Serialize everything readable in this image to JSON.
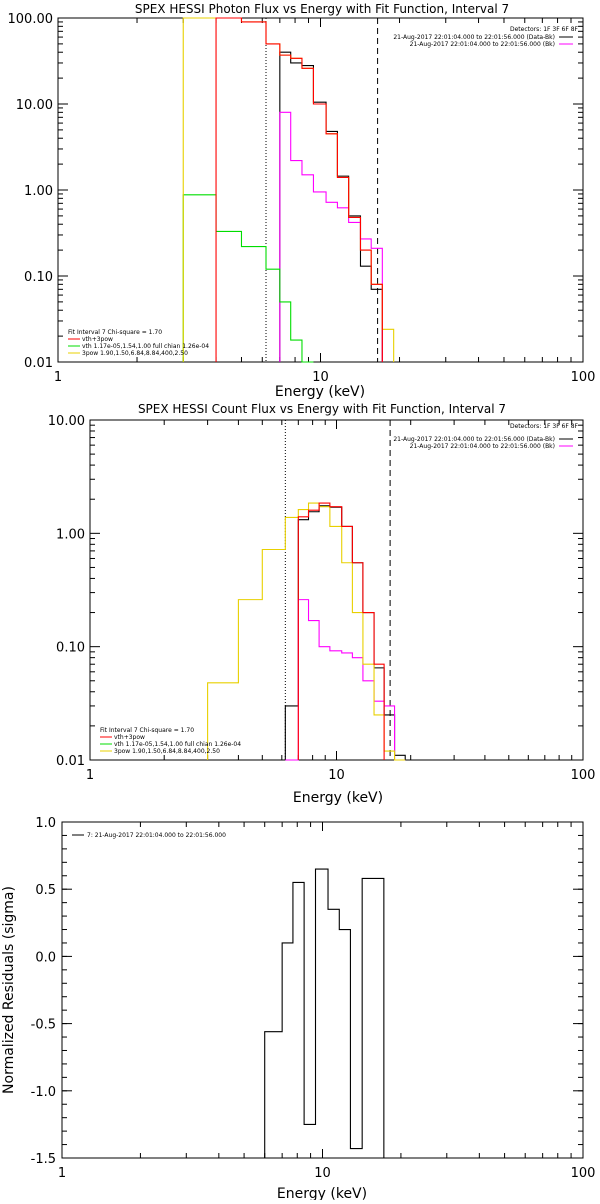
{
  "chart_data": [
    {
      "type": "line",
      "title": "SPEX HESSI Photon Flux vs Energy with Fit Function, Interval 7",
      "xlabel": "Energy (keV)",
      "ylabel": "",
      "xscale": "log",
      "yscale": "log",
      "xlim": [
        1,
        100
      ],
      "ylim": [
        0.01,
        100
      ],
      "xticks": [
        "1",
        "10",
        "100"
      ],
      "yticks": [
        "0.01",
        "0.10",
        "1.00",
        "10.00",
        "100.00"
      ],
      "detectors": "Detectors: 1F 3F 6F 8F",
      "legend_right": [
        {
          "text": "21-Aug-2017 22:01:04.000 to 22:01:56.000 (Data-Bk)",
          "color": "#000000"
        },
        {
          "text": "21-Aug-2017 22:01:04.000 to 22:01:56.000 (Bk)",
          "color": "#ff00ff"
        }
      ],
      "legend_left": [
        {
          "text": "Fit Interval 7   Chi-square = 1.70",
          "color": null
        },
        {
          "text": "vth+3pow",
          "color": "#ff0000"
        },
        {
          "text": "vth 1.17e-05,1.54,1.00  full chian 1.26e-04",
          "color": "#00dd00"
        },
        {
          "text": "3pow 1.90,1.50,6.84,8.84,400,2.50",
          "color": "#e8d000"
        }
      ],
      "vlines": [
        {
          "x": 6.2,
          "style": "dotted"
        },
        {
          "x": 16.5,
          "style": "dashed"
        }
      ],
      "bin_edges": [
        3.0,
        4.0,
        5.0,
        6.2,
        7.0,
        7.7,
        8.5,
        9.4,
        10.5,
        11.6,
        12.8,
        14.2,
        15.6,
        17.2,
        19.0
      ],
      "series": [
        {
          "name": "Data-Bk",
          "color": "#000000",
          "start": 4,
          "values": [
            40,
            30,
            28,
            10.5,
            4.8,
            1.45,
            0.5,
            0.13,
            0.07
          ]
        },
        {
          "name": "Bk",
          "color": "#ff00ff",
          "start": 4,
          "values": [
            8,
            2.2,
            1.5,
            0.95,
            0.72,
            0.62,
            0.42,
            0.27,
            0.21
          ]
        },
        {
          "name": "vth",
          "color": "#00dd00",
          "start": 0,
          "values": [
            0.88,
            0.33,
            0.22,
            0.12,
            0.05,
            0.018,
            0.006
          ]
        },
        {
          "name": "3pow",
          "color": "#e8d000",
          "start": 0,
          "values": [
            500,
            100,
            90,
            50,
            37,
            34,
            26,
            10,
            4.5,
            1.4,
            0.48,
            0.2,
            0.08,
            0.024
          ]
        },
        {
          "name": "vth+3pow",
          "color": "#ff0000",
          "start": 1,
          "values": [
            100,
            90,
            50,
            37,
            34,
            26,
            10,
            4.5,
            1.4,
            0.48,
            0.2,
            0.08
          ]
        }
      ]
    },
    {
      "type": "line",
      "title": "SPEX HESSI Count Flux vs Energy with Fit Function, Interval 7",
      "xlabel": "Energy (keV)",
      "ylabel": "",
      "xscale": "log",
      "yscale": "log",
      "xlim": [
        1,
        100
      ],
      "ylim": [
        0.01,
        10
      ],
      "xticks": [
        "1",
        "10",
        "100"
      ],
      "yticks": [
        "0.01",
        "0.10",
        "1.00",
        "10.00"
      ],
      "detectors": "Detectors: 1F 3F 6F 8F",
      "legend_right": [
        {
          "text": "21-Aug-2017 22:01:04.000 to 22:01:56.000 (Data-Bk)",
          "color": "#000000"
        },
        {
          "text": "21-Aug-2017 22:01:04.000 to 22:01:56.000 (Bk)",
          "color": "#ff00ff"
        }
      ],
      "legend_left": [
        {
          "text": "Fit Interval 7   Chi-square = 1.70",
          "color": null
        },
        {
          "text": "vth+3pow",
          "color": "#ff0000"
        },
        {
          "text": "vth 1.17e-05,1.54,1.00  full chian 1.26e-04",
          "color": "#00dd00"
        },
        {
          "text": "3pow 1.90,1.50,6.84,8.84,400,2.50",
          "color": "#e8d000"
        }
      ],
      "vlines": [
        {
          "x": 6.2,
          "style": "dotted"
        },
        {
          "x": 16.5,
          "style": "dashed"
        }
      ],
      "bin_edges": [
        3.0,
        4.0,
        5.0,
        6.2,
        7.0,
        7.7,
        8.5,
        9.4,
        10.5,
        11.6,
        12.8,
        14.2,
        15.6,
        17.2,
        19.0
      ],
      "series": [
        {
          "name": "Data-Bk",
          "color": "#000000",
          "start": 3,
          "values": [
            0.03,
            1.32,
            1.55,
            1.75,
            1.7,
            1.15,
            0.55,
            0.2,
            0.065,
            0.025,
            0.011
          ]
        },
        {
          "name": "Bk",
          "color": "#ff00ff",
          "start": 3,
          "values": [
            0.01,
            0.26,
            0.17,
            0.1,
            0.092,
            0.088,
            0.08,
            0.05,
            0.033,
            0.03,
            0.01
          ]
        },
        {
          "name": "3pow",
          "color": "#e8d000",
          "start": 0,
          "values": [
            0.048,
            0.26,
            0.72,
            1.38,
            1.62,
            1.85,
            1.72,
            1.15,
            0.55,
            0.2,
            0.07,
            0.025,
            0.012,
            0.01
          ]
        },
        {
          "name": "vth+3pow",
          "color": "#ff0000",
          "start": 4,
          "values": [
            1.4,
            1.6,
            1.85,
            1.72,
            1.15,
            0.55,
            0.2,
            0.07
          ]
        }
      ]
    },
    {
      "type": "line",
      "title": "",
      "xlabel": "Energy (keV)",
      "ylabel": "Normalized Residuals (sigma)",
      "xscale": "log",
      "yscale": "linear",
      "xlim": [
        1,
        100
      ],
      "ylim": [
        -1.5,
        1.0
      ],
      "xticks": [
        "1",
        "10",
        "100"
      ],
      "yticks": [
        "-1.5",
        "-1.0",
        "-0.5",
        "0.0",
        "0.5",
        "1.0"
      ],
      "legend": [
        {
          "text": "7: 21-Aug-2017 22:01:04.000 to 22:01:56.000",
          "color": "#000000"
        }
      ],
      "bin_edges": [
        6.0,
        7.0,
        7.7,
        8.5,
        9.4,
        10.5,
        11.6,
        12.8,
        14.2,
        15.6,
        17.2
      ],
      "series": [
        {
          "name": "",
          "color": "#000000",
          "values": [
            -0.56,
            0.1,
            0.55,
            -1.25,
            0.65,
            0.35,
            0.2,
            -1.43,
            0.58,
            0.58
          ]
        }
      ]
    }
  ]
}
